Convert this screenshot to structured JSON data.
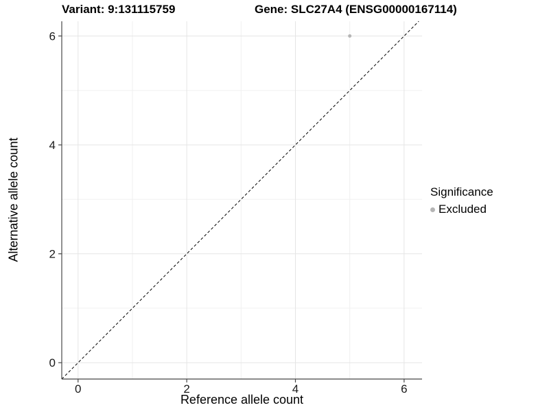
{
  "chart_data": {
    "type": "scatter",
    "title_left": "Variant: 9:131115759",
    "title_right": "Gene: SLC27A4 (ENSG00000167114)",
    "xlabel": "Reference allele count",
    "ylabel": "Alternative allele count",
    "xlim": [
      -0.3,
      6.33
    ],
    "ylim": [
      -0.3,
      6.27
    ],
    "x_ticks": [
      0,
      2,
      4,
      6
    ],
    "x_tick_labels": [
      "0",
      "2",
      "4",
      "6"
    ],
    "y_ticks": [
      0,
      2,
      4,
      6
    ],
    "y_tick_labels": [
      "0",
      "2",
      "4",
      "6"
    ],
    "minor_ticks": [
      1,
      3,
      5
    ],
    "grid": true,
    "legend_position": "right",
    "reference_line": {
      "type": "identity",
      "style": "dashed",
      "color": "#000000",
      "dash": "4 3"
    },
    "series": [
      {
        "name": "Excluded",
        "color": "#b5b5b5",
        "point_radius": 2.5,
        "points": [
          {
            "x": 5,
            "y": 6
          }
        ]
      }
    ],
    "legend": {
      "title": "Significance",
      "entries": [
        {
          "label": "Excluded",
          "color": "#b5b5b5"
        }
      ]
    },
    "style": {
      "background": "#ffffff",
      "grid_major_color": "#e5e5e5",
      "grid_minor_color": "#f0f0f0",
      "axis_line_color": "#464646",
      "tick_color": "#464646",
      "tick_label_color": "#1a1a1a"
    }
  }
}
